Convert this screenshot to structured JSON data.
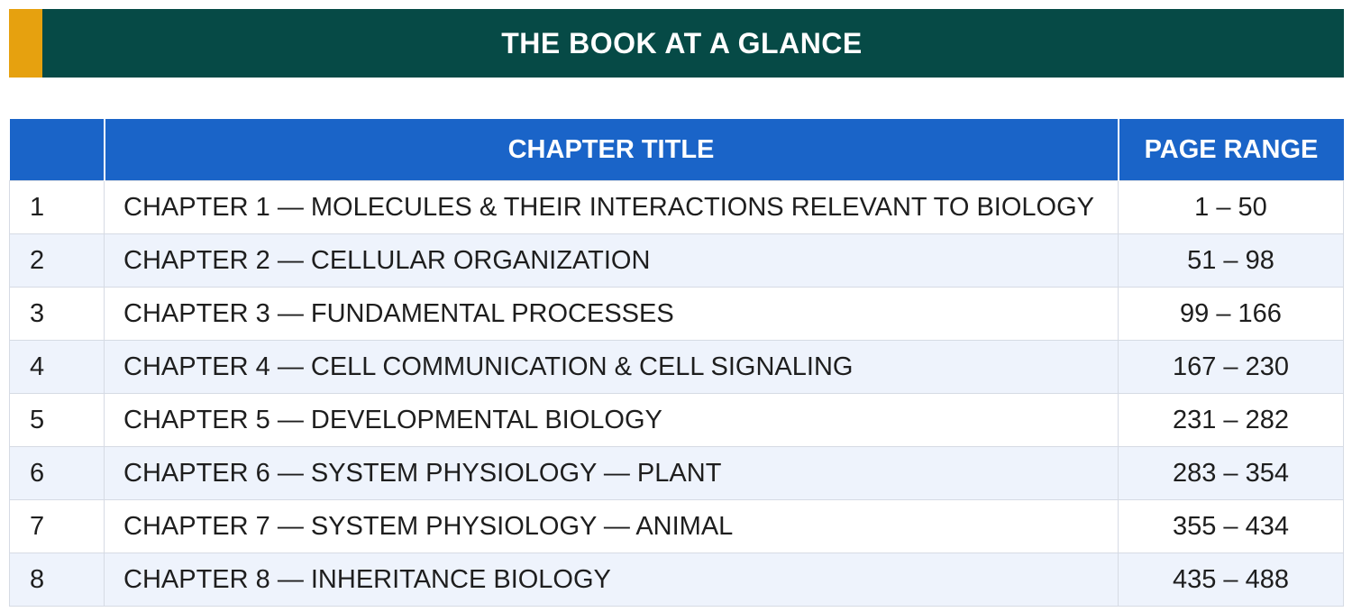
{
  "banner": {
    "title": "THE BOOK AT A GLANCE",
    "bg_color": "#064a46",
    "accent_color": "#e6a10f"
  },
  "table": {
    "header_color": "#1a64c8",
    "stripe_color": "#eef3fc",
    "columns": [
      "",
      "CHAPTER TITLE",
      "PAGE RANGE"
    ],
    "rows": [
      {
        "num": "1",
        "title": "CHAPTER 1 — MOLECULES & THEIR INTERACTIONS RELEVANT TO BIOLOGY",
        "range": "1 – 50"
      },
      {
        "num": "2",
        "title": "CHAPTER 2 — CELLULAR ORGANIZATION",
        "range": "51 – 98"
      },
      {
        "num": "3",
        "title": "CHAPTER 3 — FUNDAMENTAL PROCESSES",
        "range": "99 – 166"
      },
      {
        "num": "4",
        "title": "CHAPTER 4 — CELL COMMUNICATION & CELL SIGNALING",
        "range": "167 – 230"
      },
      {
        "num": "5",
        "title": "CHAPTER 5 — DEVELOPMENTAL BIOLOGY",
        "range": "231 – 282"
      },
      {
        "num": "6",
        "title": "CHAPTER 6 — SYSTEM PHYSIOLOGY — PLANT",
        "range": "283 – 354"
      },
      {
        "num": "7",
        "title": "CHAPTER 7 — SYSTEM PHYSIOLOGY — ANIMAL",
        "range": "355 – 434"
      },
      {
        "num": "8",
        "title": "CHAPTER 8 — INHERITANCE BIOLOGY",
        "range": "435 – 488"
      }
    ]
  }
}
